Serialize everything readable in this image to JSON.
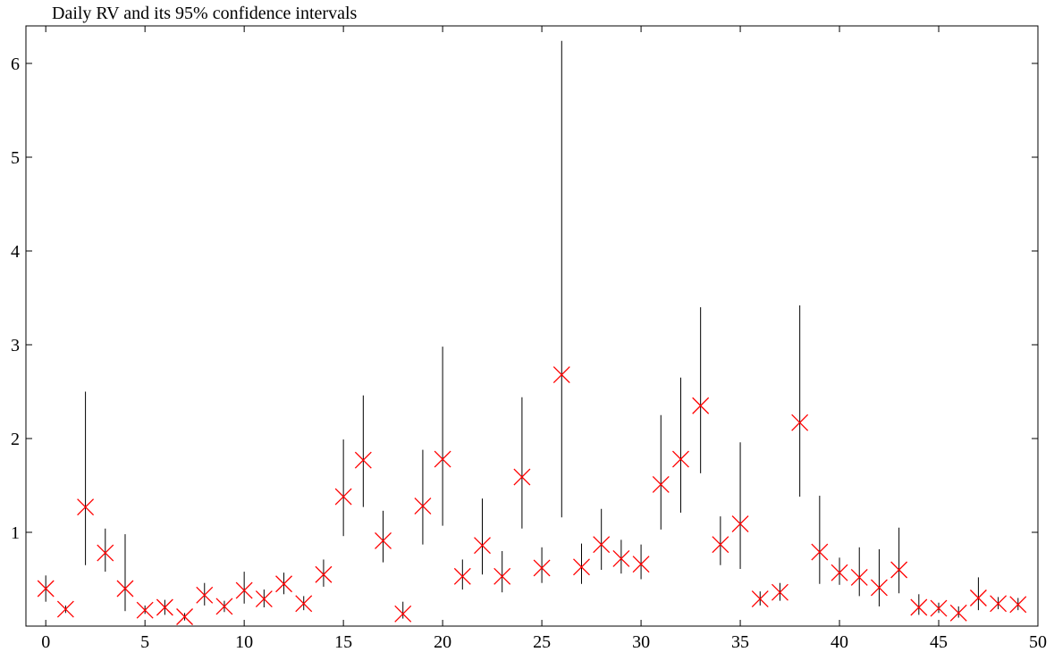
{
  "chart_data": {
    "type": "scatter",
    "title": "Daily RV and its 95% confidence intervals",
    "xlabel": "",
    "ylabel": "",
    "xlim": [
      -1,
      50
    ],
    "ylim": [
      0,
      6.4
    ],
    "x_ticks": [
      0,
      5,
      10,
      15,
      20,
      25,
      30,
      35,
      40,
      45,
      50
    ],
    "y_ticks": [
      1,
      2,
      3,
      4,
      5,
      6
    ],
    "grid": false,
    "legend": "none",
    "marker_color": "#ff0000",
    "interval_color": "#000000",
    "points": [
      {
        "x": 0,
        "y": 0.4,
        "lo": 0.26,
        "hi": 0.54
      },
      {
        "x": 1,
        "y": 0.18,
        "lo": 0.14,
        "hi": 0.22
      },
      {
        "x": 2,
        "y": 1.27,
        "lo": 0.65,
        "hi": 2.5
      },
      {
        "x": 3,
        "y": 0.78,
        "lo": 0.58,
        "hi": 1.04
      },
      {
        "x": 4,
        "y": 0.4,
        "lo": 0.16,
        "hi": 0.98
      },
      {
        "x": 5,
        "y": 0.17,
        "lo": 0.13,
        "hi": 0.22
      },
      {
        "x": 6,
        "y": 0.2,
        "lo": 0.12,
        "hi": 0.28
      },
      {
        "x": 7,
        "y": 0.1,
        "lo": 0.06,
        "hi": 0.14
      },
      {
        "x": 8,
        "y": 0.33,
        "lo": 0.22,
        "hi": 0.46
      },
      {
        "x": 9,
        "y": 0.21,
        "lo": 0.15,
        "hi": 0.27
      },
      {
        "x": 10,
        "y": 0.38,
        "lo": 0.24,
        "hi": 0.58
      },
      {
        "x": 11,
        "y": 0.29,
        "lo": 0.2,
        "hi": 0.39
      },
      {
        "x": 12,
        "y": 0.45,
        "lo": 0.34,
        "hi": 0.57
      },
      {
        "x": 13,
        "y": 0.24,
        "lo": 0.17,
        "hi": 0.32
      },
      {
        "x": 14,
        "y": 0.55,
        "lo": 0.42,
        "hi": 0.71
      },
      {
        "x": 15,
        "y": 1.38,
        "lo": 0.96,
        "hi": 1.99
      },
      {
        "x": 16,
        "y": 1.77,
        "lo": 1.27,
        "hi": 2.46
      },
      {
        "x": 17,
        "y": 0.91,
        "lo": 0.68,
        "hi": 1.23
      },
      {
        "x": 18,
        "y": 0.13,
        "lo": 0.08,
        "hi": 0.26
      },
      {
        "x": 19,
        "y": 1.28,
        "lo": 0.87,
        "hi": 1.88
      },
      {
        "x": 20,
        "y": 1.78,
        "lo": 1.07,
        "hi": 2.98
      },
      {
        "x": 21,
        "y": 0.53,
        "lo": 0.39,
        "hi": 0.71
      },
      {
        "x": 22,
        "y": 0.86,
        "lo": 0.55,
        "hi": 1.36
      },
      {
        "x": 23,
        "y": 0.53,
        "lo": 0.36,
        "hi": 0.8
      },
      {
        "x": 24,
        "y": 1.59,
        "lo": 1.04,
        "hi": 2.44
      },
      {
        "x": 25,
        "y": 0.62,
        "lo": 0.46,
        "hi": 0.84
      },
      {
        "x": 26,
        "y": 2.68,
        "lo": 1.16,
        "hi": 6.24
      },
      {
        "x": 27,
        "y": 0.63,
        "lo": 0.45,
        "hi": 0.88
      },
      {
        "x": 28,
        "y": 0.87,
        "lo": 0.6,
        "hi": 1.25
      },
      {
        "x": 29,
        "y": 0.72,
        "lo": 0.56,
        "hi": 0.92
      },
      {
        "x": 30,
        "y": 0.66,
        "lo": 0.5,
        "hi": 0.87
      },
      {
        "x": 31,
        "y": 1.51,
        "lo": 1.03,
        "hi": 2.25
      },
      {
        "x": 32,
        "y": 1.78,
        "lo": 1.21,
        "hi": 2.65
      },
      {
        "x": 33,
        "y": 2.35,
        "lo": 1.63,
        "hi": 3.4
      },
      {
        "x": 34,
        "y": 0.87,
        "lo": 0.65,
        "hi": 1.17
      },
      {
        "x": 35,
        "y": 1.09,
        "lo": 0.61,
        "hi": 1.96
      },
      {
        "x": 36,
        "y": 0.29,
        "lo": 0.22,
        "hi": 0.37
      },
      {
        "x": 37,
        "y": 0.36,
        "lo": 0.27,
        "hi": 0.46
      },
      {
        "x": 38,
        "y": 2.17,
        "lo": 1.38,
        "hi": 3.42
      },
      {
        "x": 39,
        "y": 0.79,
        "lo": 0.45,
        "hi": 1.39
      },
      {
        "x": 40,
        "y": 0.57,
        "lo": 0.44,
        "hi": 0.73
      },
      {
        "x": 41,
        "y": 0.52,
        "lo": 0.32,
        "hi": 0.84
      },
      {
        "x": 42,
        "y": 0.41,
        "lo": 0.21,
        "hi": 0.82
      },
      {
        "x": 43,
        "y": 0.6,
        "lo": 0.35,
        "hi": 1.05
      },
      {
        "x": 44,
        "y": 0.2,
        "lo": 0.12,
        "hi": 0.34
      },
      {
        "x": 45,
        "y": 0.19,
        "lo": 0.14,
        "hi": 0.25
      },
      {
        "x": 46,
        "y": 0.14,
        "lo": 0.09,
        "hi": 0.21
      },
      {
        "x": 47,
        "y": 0.3,
        "lo": 0.17,
        "hi": 0.52
      },
      {
        "x": 48,
        "y": 0.24,
        "lo": 0.18,
        "hi": 0.31
      },
      {
        "x": 49,
        "y": 0.23,
        "lo": 0.17,
        "hi": 0.3
      }
    ]
  }
}
